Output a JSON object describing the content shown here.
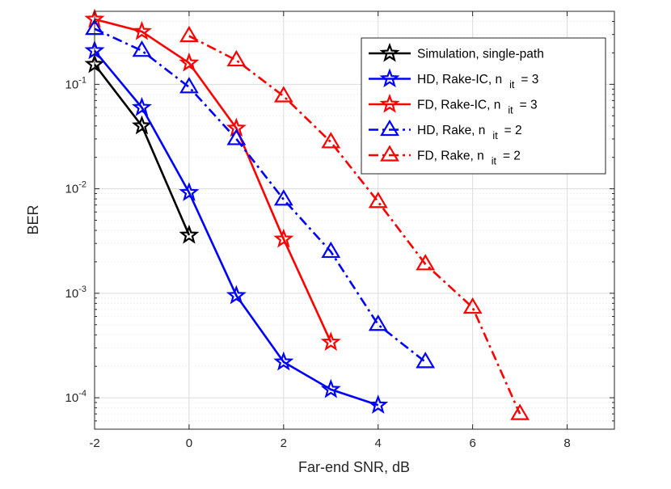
{
  "chart_data": {
    "type": "line",
    "title": "",
    "xlabel": "Far-end SNR, dB",
    "ylabel": "BER",
    "xlim": [
      -2,
      9
    ],
    "ylim": [
      5e-05,
      0.5
    ],
    "yscale": "log",
    "grid": true,
    "legend_position": "top-right",
    "x_ticks": [
      -2,
      0,
      2,
      4,
      6,
      8
    ],
    "x_tick_labels": [
      "-2",
      "0",
      "2",
      "4",
      "6",
      "8"
    ],
    "y_ticks": [
      0.1,
      0.01,
      0.001,
      0.0001
    ],
    "y_tick_labels": [
      {
        "base": "10",
        "exp": "-1"
      },
      {
        "base": "10",
        "exp": "-2"
      },
      {
        "base": "10",
        "exp": "-3"
      },
      {
        "base": "10",
        "exp": "-4"
      }
    ],
    "series": [
      {
        "name": "Simulation, single-path",
        "legend": {
          "text": "Simulation, single-path",
          "sub": "",
          "tail": ""
        },
        "color": "#000000",
        "dash": "solid",
        "marker": "star",
        "x": [
          -2,
          -1,
          0
        ],
        "values": [
          0.155,
          0.04,
          0.0036
        ]
      },
      {
        "name": "HD, Rake-IC, n it = 3",
        "legend": {
          "text": "HD, Rake-IC, n",
          "sub": "it",
          "tail": "= 3"
        },
        "color": "#0000ff",
        "dash": "solid",
        "marker": "star",
        "x": [
          -2,
          -1,
          0,
          1,
          2,
          3,
          4
        ],
        "values": [
          0.21,
          0.06,
          0.0092,
          0.00095,
          0.00022,
          0.00012,
          8.5e-05
        ]
      },
      {
        "name": "FD, Rake-IC, n it = 3",
        "legend": {
          "text": "FD, Rake-IC, n",
          "sub": "it",
          "tail": "= 3"
        },
        "color": "#ff0000",
        "dash": "solid",
        "marker": "star",
        "x": [
          -2,
          -1,
          0,
          1,
          2,
          3
        ],
        "values": [
          0.42,
          0.32,
          0.16,
          0.038,
          0.0033,
          0.00034
        ]
      },
      {
        "name": "HD, Rake, n it = 2",
        "legend": {
          "text": "HD, Rake, n",
          "sub": "it",
          "tail": "= 2"
        },
        "color": "#0000ff",
        "dash": "dashdot",
        "marker": "triangle",
        "x": [
          -2,
          -1,
          0,
          1,
          2,
          3,
          4,
          5
        ],
        "values": [
          0.34,
          0.21,
          0.094,
          0.03,
          0.0079,
          0.0025,
          0.0005,
          0.00022
        ]
      },
      {
        "name": "FD, Rake, n it = 2",
        "legend": {
          "text": "FD, Rake, n",
          "sub": "it",
          "tail": "= 2"
        },
        "color": "#ff0000",
        "dash": "dashdot",
        "marker": "triangle",
        "x": [
          0,
          1,
          2,
          3,
          4,
          5,
          6,
          7
        ],
        "values": [
          0.29,
          0.17,
          0.077,
          0.028,
          0.0075,
          0.0019,
          0.00073,
          7e-05
        ]
      }
    ]
  }
}
